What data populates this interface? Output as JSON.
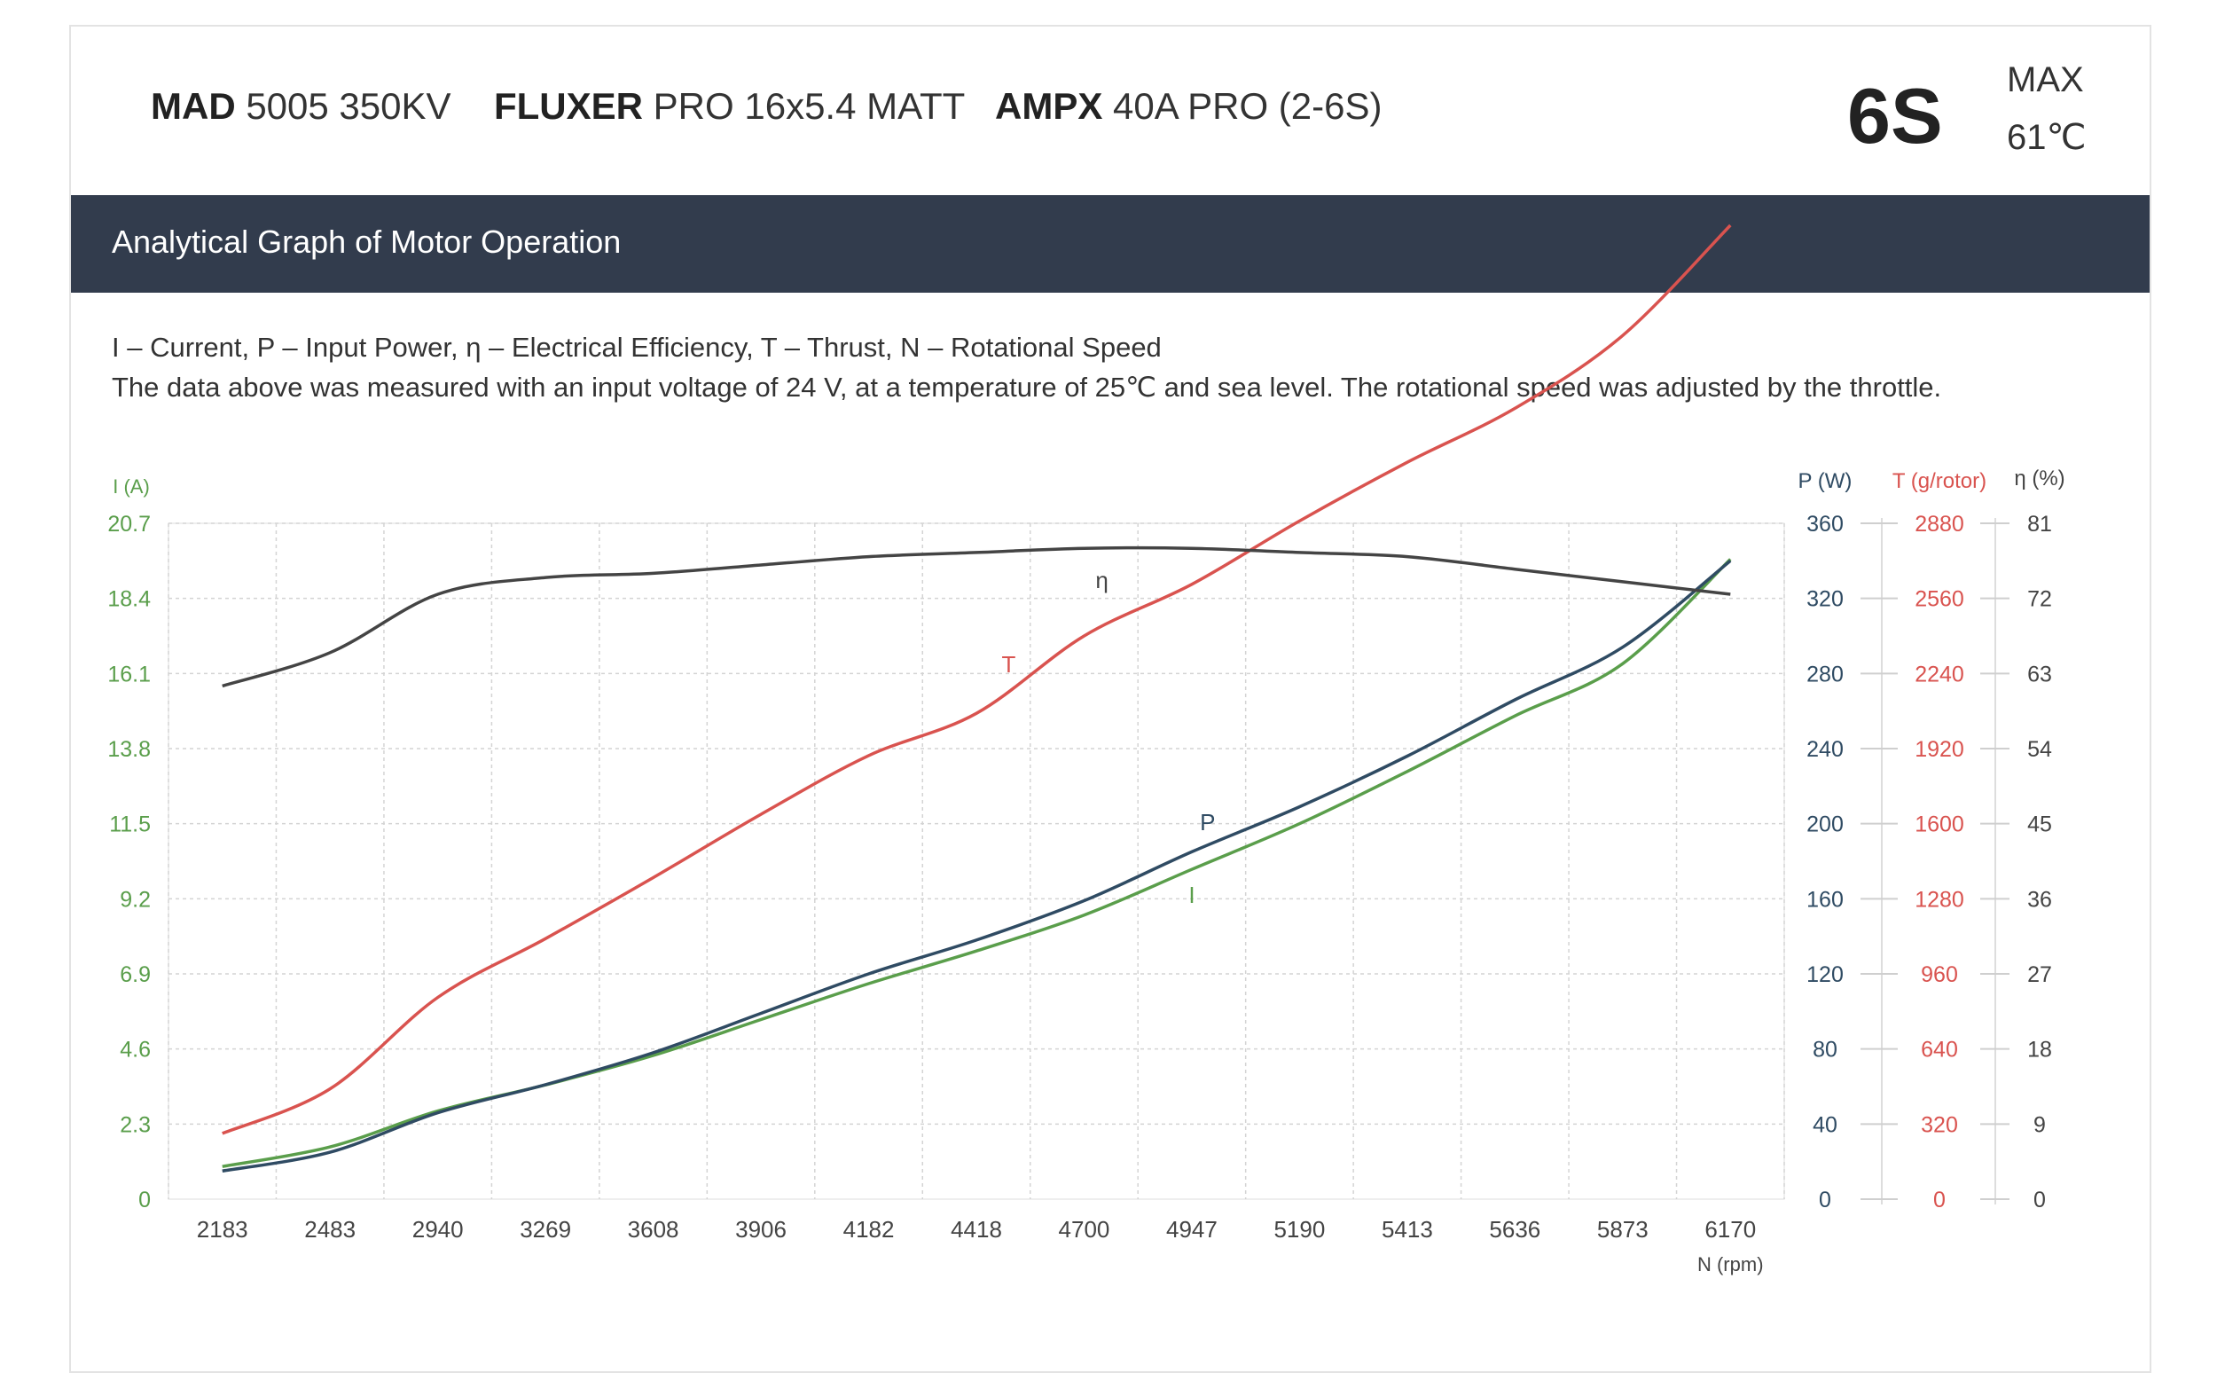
{
  "header": {
    "motor": {
      "brand": "MAD",
      "model": "5005 350KV"
    },
    "propeller": {
      "brand": "FLUXER",
      "model": "PRO 16x5.4 MATT"
    },
    "esc": {
      "brand": "AMPX",
      "model": "40A PRO (2-6S)"
    },
    "cells": "6S",
    "max_label": "MAX",
    "max_temp": "61℃"
  },
  "banner": {
    "title": "Analytical Graph of Motor Operation"
  },
  "legend": {
    "line1": "I – Current, P – Input Power, η – Electrical Efficiency, T – Thrust,   N – Rotational Speed",
    "line2": "The data above was measured with an input voltage of 24 V, at a temperature of 25℃ and sea level. The rotational speed was adjusted by the throttle."
  },
  "colors": {
    "current": "#5a9e4b",
    "power": "#2f4b63",
    "thrust": "#d9534f",
    "efficiency": "#444444",
    "grid": "#d4d4d4",
    "axis_text": "#444444"
  },
  "chart_data": {
    "type": "line",
    "x_label": "N (rpm)",
    "x": [
      2183,
      2483,
      2940,
      3269,
      3608,
      3906,
      4182,
      4418,
      4700,
      4947,
      5190,
      5413,
      5636,
      5873,
      6170
    ],
    "axes": {
      "current": {
        "label": "I (A)",
        "ticks": [
          "0",
          "2.3",
          "4.6",
          "6.9",
          "9.2",
          "11.5",
          "13.8",
          "16.1",
          "18.4",
          "20.7"
        ],
        "range": [
          0,
          20.7
        ]
      },
      "power": {
        "label": "P (W)",
        "ticks": [
          "0",
          "40",
          "80",
          "120",
          "160",
          "200",
          "240",
          "280",
          "320",
          "360"
        ],
        "range": [
          0,
          360
        ]
      },
      "thrust": {
        "label": "T (g/rotor)",
        "ticks": [
          "0",
          "320",
          "640",
          "960",
          "1280",
          "1600",
          "1920",
          "2240",
          "2560",
          "2880"
        ],
        "range": [
          0,
          2880
        ]
      },
      "efficiency": {
        "label": "η (%)",
        "ticks": [
          "0",
          "9",
          "18",
          "27",
          "36",
          "45",
          "54",
          "63",
          "72",
          "81"
        ],
        "range": [
          0,
          81
        ]
      }
    },
    "series": [
      {
        "name": "I",
        "axis": "current",
        "color": "#5a9e4b",
        "values": [
          1.0,
          1.6,
          2.7,
          3.5,
          4.4,
          5.5,
          6.6,
          7.6,
          8.7,
          10.1,
          11.5,
          13.1,
          14.8,
          16.4,
          19.6
        ]
      },
      {
        "name": "P",
        "axis": "power",
        "color": "#2f4b63",
        "values": [
          15,
          25,
          46,
          61,
          78,
          99,
          120,
          138,
          159,
          185,
          209,
          236,
          266,
          294,
          340
        ]
      },
      {
        "name": "T",
        "axis": "thrust",
        "color": "#d9534f",
        "values": [
          280,
          470,
          860,
          1110,
          1370,
          1640,
          1890,
          2070,
          2400,
          2620,
          2890,
          3140,
          3370,
          3680,
          4150
        ]
      },
      {
        "name": "η",
        "axis": "efficiency",
        "color": "#444444",
        "values": [
          61.5,
          65.5,
          72.5,
          74.5,
          75.0,
          76.0,
          77.0,
          77.5,
          78.0,
          78.0,
          77.5,
          77.0,
          75.5,
          74.0,
          72.5
        ]
      }
    ]
  }
}
